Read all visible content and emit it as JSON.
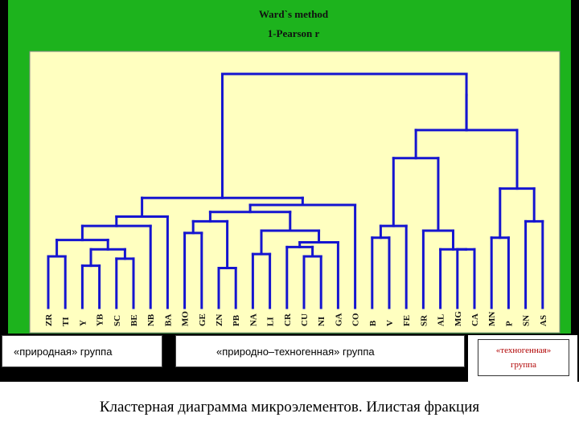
{
  "chart_data": {
    "type": "dendrogram",
    "title": "Ward`s method",
    "subtitle": "1-Pearson r",
    "leaves": [
      "ZR",
      "TI",
      "Y",
      "YB",
      "SC",
      "BE",
      "NB",
      "BA",
      "MO",
      "GE",
      "ZN",
      "PB",
      "NA",
      "LI",
      "CR",
      "CU",
      "NI",
      "GA",
      "CO",
      "B",
      "V",
      "FE",
      "SR",
      "AL",
      "MG",
      "CA",
      "MN",
      "P",
      "SN",
      "AS"
    ],
    "linkage_heights": {
      "zr_ti": 0.22,
      "y_yb": 0.18,
      "sc_be": 0.21,
      "y_yb_sc_be": 0.25,
      "zr_ti_y_yb_sc_be": 0.29,
      "natural_with_nb": 0.35,
      "natural_with_ba": 0.39,
      "mo_ge": 0.32,
      "zn_pb": 0.17,
      "mo_ge_zn_pb": 0.37,
      "na_li": 0.23,
      "cu_ni": 0.22,
      "cr_cu_ni": 0.26,
      "cr_cu_ni_ga": 0.28,
      "na_li_cr_cu_ni_ga": 0.33,
      "mo_group_na_group": 0.41,
      "with_co": 0.44,
      "with_ba_group": 0.47,
      "b_v": 0.3,
      "b_v_fe": 0.35,
      "al_mg_ca_sub": 0.25,
      "sr_al_mg_ca": 0.33,
      "b_group_sr_group": 0.64,
      "mn_p": 0.3,
      "sn_as": 0.37,
      "mn_p_sn_as": 0.51,
      "b_group_mn_group": 0.76,
      "with_natural_tech": 0.91,
      "root": 1.0
    },
    "ylim": [
      0,
      1.0
    ]
  },
  "groups": {
    "natural": "«природная» группа",
    "natural_technogenic": "«природно–техногенная» группа",
    "technogenic_line1": "«техногенная»",
    "technogenic_line2": "группа"
  },
  "caption": "Кластерная диаграмма микроэлементов. Илистая фракция",
  "colors": {
    "background": "#1db31d",
    "plot_area": "#ffffc0",
    "line": "#1515d0",
    "tech_label": "#b00000"
  }
}
